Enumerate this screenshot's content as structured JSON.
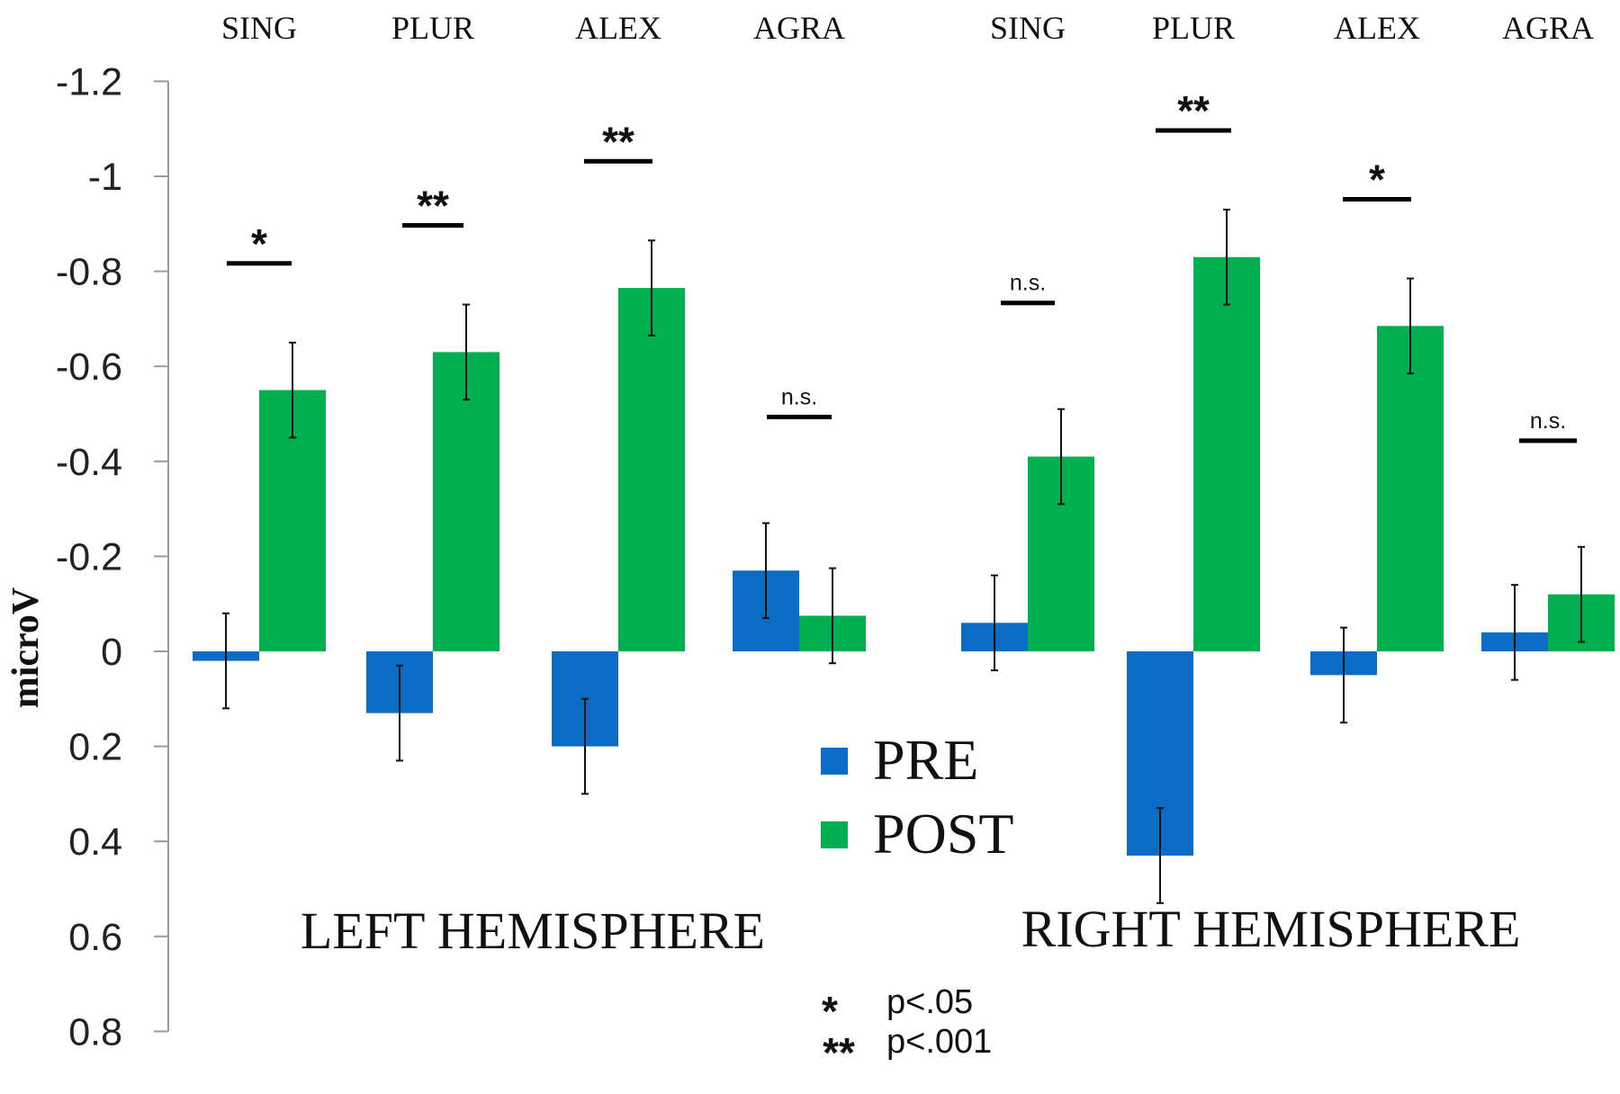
{
  "chart_data": {
    "type": "bar",
    "ylabel": "microV",
    "ylim": [
      0.8,
      -1.2
    ],
    "y_ticks": [
      "-1.2",
      "-1",
      "-0.8",
      "-0.6",
      "-0.4",
      "-0.2",
      "0",
      "0.2",
      "0.4",
      "0.6",
      "0.8"
    ],
    "y_tick_values": [
      -1.2,
      -1.0,
      -0.8,
      -0.6,
      -0.4,
      -0.2,
      0,
      0.2,
      0.4,
      0.6,
      0.8
    ],
    "y_inverted": true,
    "grid": false,
    "legend_position": "center",
    "categories": [
      "SING",
      "PLUR",
      "ALEX",
      "AGRA",
      "SING",
      "PLUR",
      "ALEX",
      "AGRA"
    ],
    "groups": [
      {
        "label": "LEFT HEMISPHERE",
        "categories": [
          "SING",
          "PLUR",
          "ALEX",
          "AGRA"
        ]
      },
      {
        "label": "RIGHT HEMISPHERE",
        "categories": [
          "SING",
          "PLUR",
          "ALEX",
          "AGRA"
        ]
      }
    ],
    "series": [
      {
        "name": "PRE",
        "color": "#0a6cc4",
        "values": [
          0.02,
          0.13,
          0.2,
          -0.17,
          -0.06,
          0.43,
          0.05,
          -0.04
        ],
        "error": [
          0.1,
          0.1,
          0.1,
          0.1,
          0.1,
          0.1,
          0.1,
          0.1
        ]
      },
      {
        "name": "POST",
        "color": "#00b050",
        "values": [
          -0.55,
          -0.63,
          -0.765,
          -0.075,
          -0.41,
          -0.83,
          -0.685,
          -0.12
        ],
        "error": [
          0.1,
          0.1,
          0.1,
          0.1,
          0.1,
          0.1,
          0.1,
          0.1
        ]
      }
    ],
    "significance": [
      "*",
      "**",
      "**",
      "n.s.",
      "n.s.",
      "**",
      "*",
      "n.s."
    ],
    "significance_key": [
      {
        "mark": "*",
        "text": "p<.05"
      },
      {
        "mark": "**",
        "text": "p<.001"
      }
    ]
  }
}
